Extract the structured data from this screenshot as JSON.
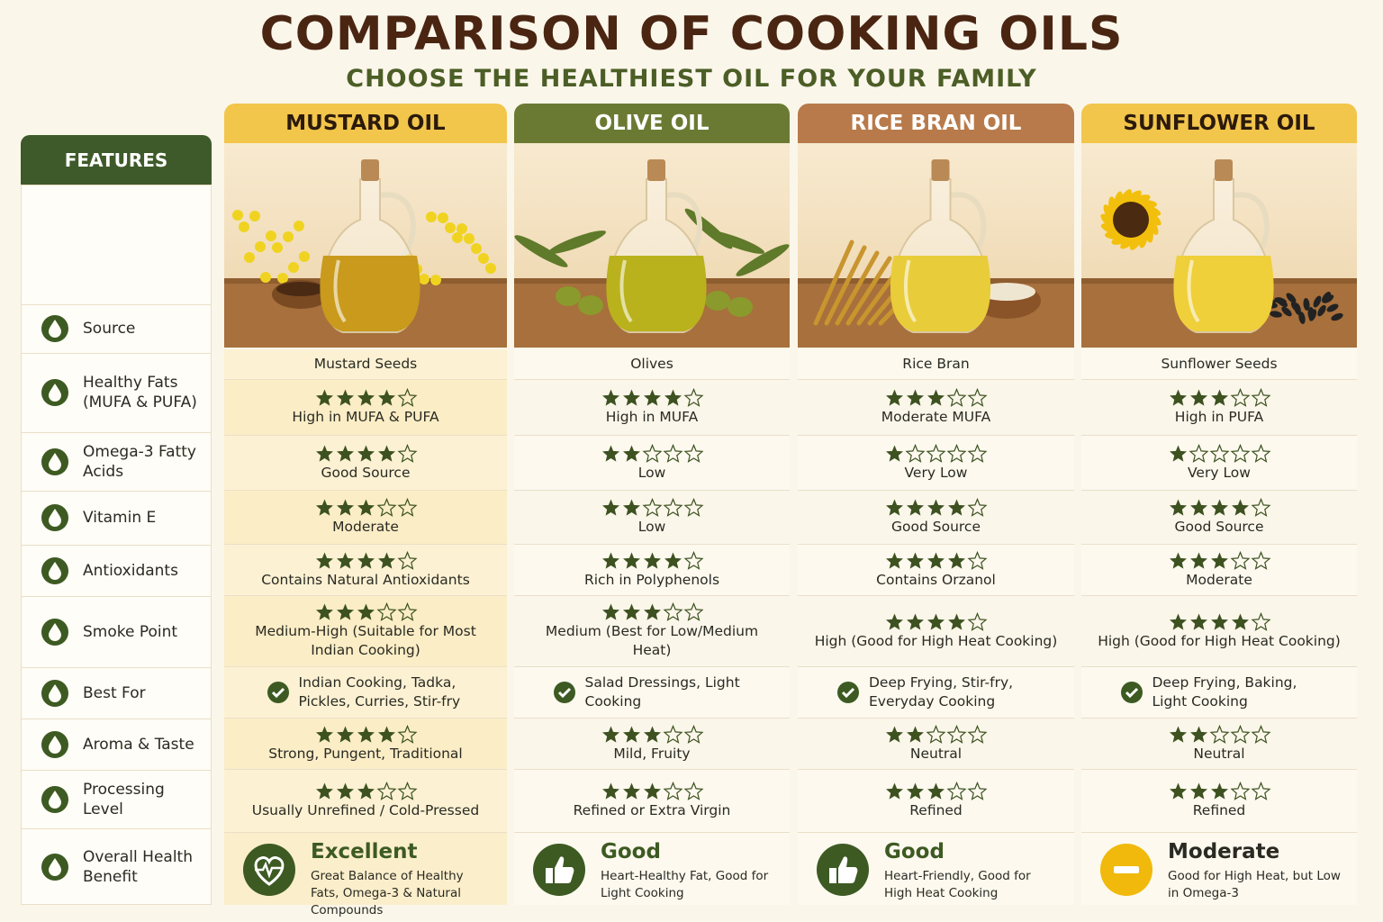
{
  "header": {
    "title": "COMPARISON OF COOKING OILS",
    "subtitle": "CHOOSE THE HEALTHIEST OIL FOR YOUR FAMILY"
  },
  "features_label": "FEATURES",
  "features": [
    "Source",
    "Healthy Fats (MUFA & PUFA)",
    "Omega-3 Fatty Acids",
    "Vitamin E",
    "Antioxidants",
    "Smoke Point",
    "Best For",
    "Aroma & Taste",
    "Processing Level",
    "Overall Health Benefit"
  ],
  "max_stars": 5,
  "star_color": "#3d5220",
  "oils": [
    {
      "name": "MUSTARD OIL",
      "header_color": "#f2c54b",
      "header_text_color": "#2b1a0c",
      "column_color": "#fbedc6",
      "image": "mustard",
      "oil_color": "#c99a1c",
      "rows": [
        {
          "text": "Mustard Seeds"
        },
        {
          "stars": 4,
          "text": "High in MUFA & PUFA"
        },
        {
          "stars": 4,
          "text": "Good Source"
        },
        {
          "stars": 3,
          "text": "Moderate"
        },
        {
          "stars": 4,
          "text": "Contains Natural Antioxidants"
        },
        {
          "stars": 3,
          "text": "Medium-High (Suitable for Most Indian Cooking)"
        },
        {
          "check": true,
          "text": "Indian Cooking, Tadka, Pickles, Curries, Stir-fry"
        },
        {
          "stars": 4,
          "text": "Strong, Pungent, Traditional"
        },
        {
          "stars": 3,
          "text": "Usually Unrefined / Cold-Pressed"
        }
      ],
      "verdict": "Excellent",
      "verdict_note": "Great Balance of Healthy Fats, Omega-3 & Natural Compounds",
      "verdict_icon": "heart",
      "verdict_color": "#3d5a22"
    },
    {
      "name": "OLIVE OIL",
      "header_color": "#6b7a33",
      "header_text_color": "#ffffff",
      "column_color": "#fbf6ea",
      "image": "olive",
      "oil_color": "#b9b21c",
      "rows": [
        {
          "text": "Olives"
        },
        {
          "stars": 4,
          "text": "High in MUFA"
        },
        {
          "stars": 2,
          "text": "Low"
        },
        {
          "stars": 2,
          "text": "Low"
        },
        {
          "stars": 4,
          "text": "Rich in Polyphenols"
        },
        {
          "stars": 3,
          "text": "Medium (Best for Low/Medium Heat)"
        },
        {
          "check": true,
          "text": "Salad Dressings, Light Cooking"
        },
        {
          "stars": 3,
          "text": "Mild, Fruity"
        },
        {
          "stars": 3,
          "text": "Refined or Extra Virgin"
        }
      ],
      "verdict": "Good",
      "verdict_note": "Heart-Healthy Fat, Good for Light Cooking",
      "verdict_icon": "thumb",
      "verdict_color": "#3d5a22"
    },
    {
      "name": "RICE BRAN OIL",
      "header_color": "#b87a4a",
      "header_text_color": "#ffffff",
      "column_color": "#fbf6ea",
      "image": "rice",
      "oil_color": "#e9cc3a",
      "rows": [
        {
          "text": "Rice Bran"
        },
        {
          "stars": 3,
          "text": "Moderate MUFA"
        },
        {
          "stars": 1,
          "text": "Very Low"
        },
        {
          "stars": 4,
          "text": "Good Source"
        },
        {
          "stars": 4,
          "text": "Contains Orzanol"
        },
        {
          "stars": 4,
          "text": "High (Good for High Heat Cooking)"
        },
        {
          "check": true,
          "text": "Deep Frying, Stir-fry, Everyday Cooking"
        },
        {
          "stars": 2,
          "text": "Neutral"
        },
        {
          "stars": 3,
          "text": "Refined"
        }
      ],
      "verdict": "Good",
      "verdict_note": "Heart-Friendly, Good for High Heat Cooking",
      "verdict_icon": "thumb",
      "verdict_color": "#3d5a22"
    },
    {
      "name": "SUNFLOWER OIL",
      "header_color": "#f2c54b",
      "header_text_color": "#2b1a0c",
      "column_color": "#fbf6ea",
      "image": "sunflower",
      "oil_color": "#efcf3a",
      "rows": [
        {
          "text": "Sunflower Seeds"
        },
        {
          "stars": 3,
          "text": "High in PUFA"
        },
        {
          "stars": 1,
          "text": "Very Low"
        },
        {
          "stars": 4,
          "text": "Good Source"
        },
        {
          "stars": 3,
          "text": "Moderate"
        },
        {
          "stars": 4,
          "text": "High (Good for High Heat Cooking)"
        },
        {
          "check": true,
          "text": "Deep Frying, Baking, Light Cooking"
        },
        {
          "stars": 2,
          "text": "Neutral"
        },
        {
          "stars": 3,
          "text": "Refined"
        }
      ],
      "verdict": "Moderate",
      "verdict_note": "Good for High Heat, but Low in Omega-3",
      "verdict_icon": "minus",
      "verdict_color": "#f0b90b"
    }
  ]
}
